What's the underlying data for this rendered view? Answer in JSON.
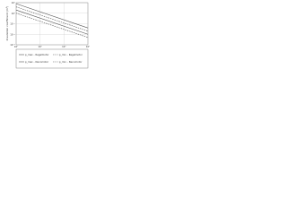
{
  "chart_data": {
    "type": "line",
    "y_label": "Insulation coefficient (m²)",
    "x": [
      1,
      1000
    ],
    "xlim": [
      1,
      1000
    ],
    "ylim": [
      0.001,
      10
    ],
    "xticks": [
      {
        "value": 1,
        "label": "10⁰"
      },
      {
        "value": 10,
        "label": "10¹"
      },
      {
        "value": 100,
        "label": "10²"
      },
      {
        "value": 1000,
        "label": "10³"
      }
    ],
    "yticks": [
      {
        "value": 0.001,
        "label": "10⁻³"
      },
      {
        "value": 0.01,
        "label": "10⁻²"
      },
      {
        "value": 0.1,
        "label": "10⁻¹"
      },
      {
        "value": 1,
        "label": "10⁰"
      },
      {
        "value": 10,
        "label": "10¹"
      }
    ],
    "log_x": true,
    "log_y": true,
    "grid": true,
    "series": [
      {
        "name": "ρ_max – Regelmotor",
        "color": "#555555",
        "dashed": false,
        "values": [
          8,
          0.04
        ]
      },
      {
        "name": "ρ_min – Regelmotor",
        "color": "#555555",
        "dashed": true,
        "values": [
          4,
          0.02
        ]
      },
      {
        "name": "ρ_max – Nennmotor",
        "color": "#555555",
        "dashed": false,
        "values": [
          2,
          0.01
        ]
      },
      {
        "name": "ρ_min – Nennmotor",
        "color": "#555555",
        "dashed": true,
        "values": [
          1,
          0.005
        ]
      }
    ]
  }
}
